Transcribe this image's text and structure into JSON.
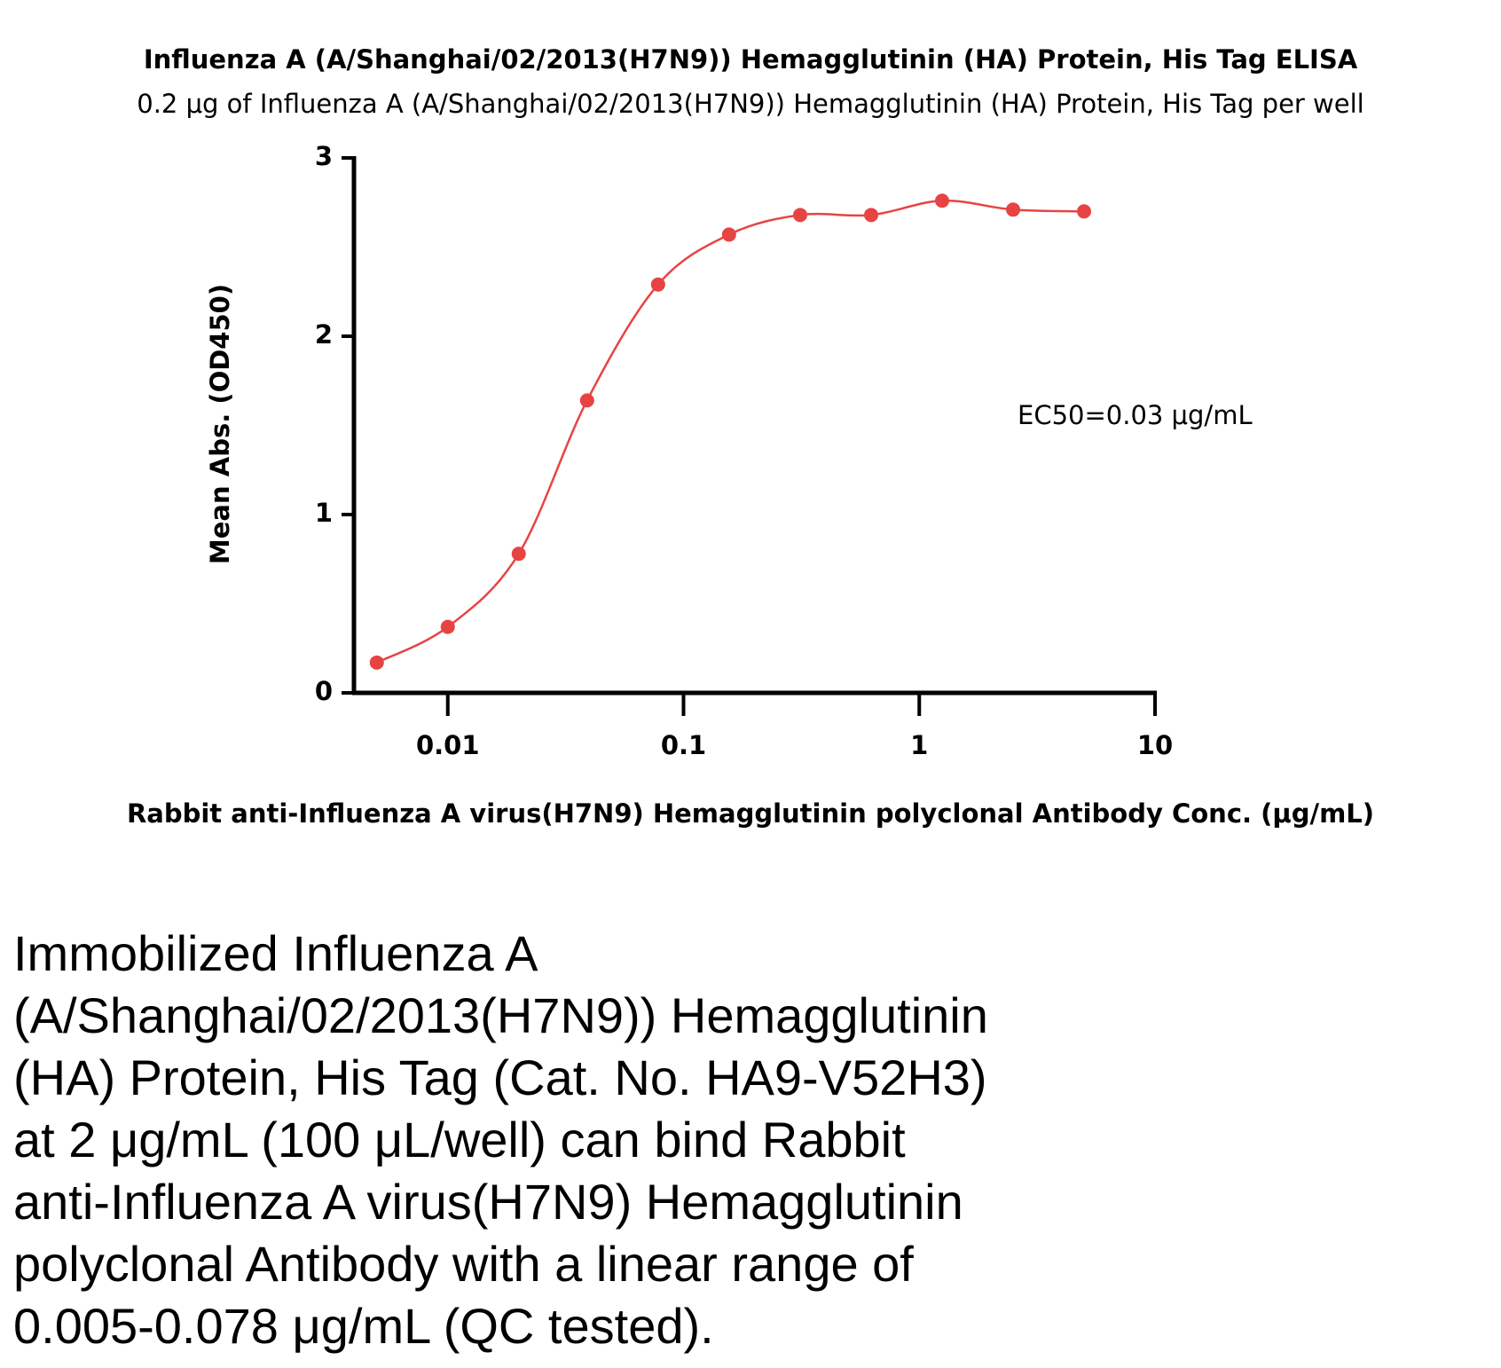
{
  "chart_data": {
    "type": "scatter",
    "title": "Influenza A (A/Shanghai/02/2013(H7N9)) Hemagglutinin (HA) Protein, His Tag ELISA",
    "subtitle": "0.2 μg of Influenza A (A/Shanghai/02/2013(H7N9)) Hemagglutinin (HA) Protein, His Tag per well",
    "x_label": "Rabbit anti-Influenza A virus(H7N9) Hemagglutinin polyclonal Antibody Conc. (μg/mL)",
    "y_label": "Mean Abs. (OD450)",
    "annotation": "EC50=0.03 μg/mL",
    "x": [
      0.005,
      0.01,
      0.02,
      0.039,
      0.078,
      0.156,
      0.3125,
      0.625,
      1.25,
      2.5,
      5
    ],
    "series": [
      {
        "color": "#e84343",
        "values": [
          0.17,
          0.37,
          0.78,
          1.64,
          2.29,
          2.57,
          2.68,
          2.68,
          2.76,
          2.71,
          2.7
        ]
      }
    ],
    "xlog": true,
    "xlim": [
      0.004,
      10
    ],
    "xticks": [
      0.01,
      0.1,
      1,
      10
    ],
    "ylim": [
      0,
      3
    ],
    "yticks": [
      0,
      1,
      2,
      3
    ]
  },
  "description": {
    "lines": [
      "Immobilized Influenza A",
      "(A/Shanghai/02/2013(H7N9)) Hemagglutinin",
      "(HA) Protein, His Tag (Cat. No. HA9-V52H3)",
      "at 2 μg/mL (100 μL/well) can bind Rabbit",
      "anti-Influenza A virus(H7N9) Hemagglutinin",
      "polyclonal Antibody with a linear range of",
      "0.005-0.078 μg/mL (QC tested)."
    ]
  }
}
